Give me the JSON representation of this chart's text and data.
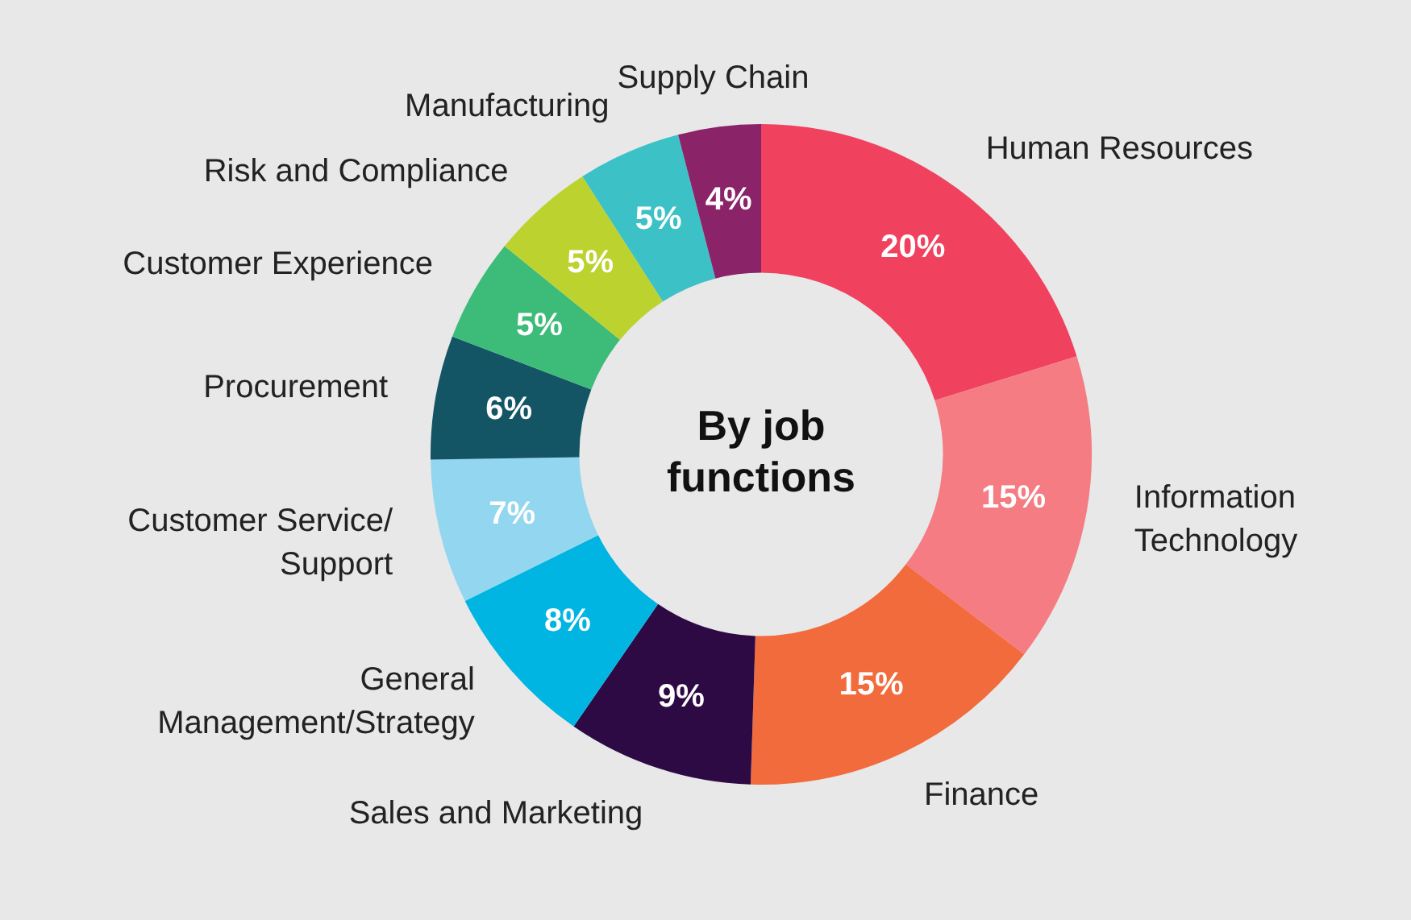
{
  "chart_data": {
    "type": "donut",
    "title": "By job functions",
    "categories": [
      "Human Resources",
      "Information Technology",
      "Finance",
      "Sales and Marketing",
      "General Management/Strategy",
      "Customer Service/ Support",
      "Procurement",
      "Customer Experience",
      "Risk and Compliance",
      "Manufacturing",
      "Supply Chain"
    ],
    "values": [
      20,
      15,
      15,
      9,
      8,
      7,
      6,
      5,
      5,
      5,
      4
    ],
    "value_labels": [
      "20%",
      "15%",
      "15%",
      "9%",
      "8%",
      "7%",
      "6%",
      "5%",
      "5%",
      "5%",
      "4%"
    ],
    "colors": [
      "#f0415f",
      "#f47c82",
      "#f26b3d",
      "#2e0a45",
      "#00b5e2",
      "#93d6ef",
      "#135565",
      "#3dbb78",
      "#bcd22e",
      "#3cc1c7",
      "#8b2369"
    ],
    "legend": false
  }
}
